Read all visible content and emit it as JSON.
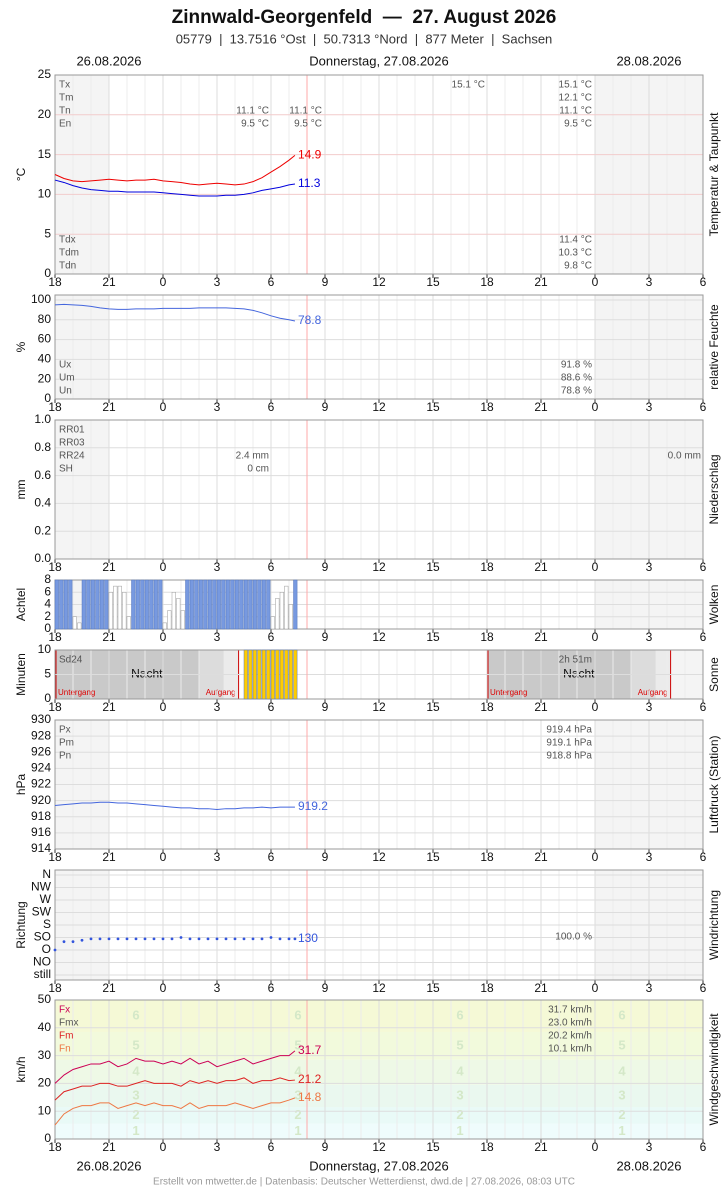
{
  "header": {
    "title": "Zinnwald-Georgenfeld  —  27. August 2026",
    "subtitle": "05779  |  13.7516 °Ost  |  50.7313 °Nord  |  877 Meter  |  Sachsen",
    "date_left": "26.08.2026",
    "date_center": "Donnerstag, 27.08.2026",
    "date_right": "28.08.2026",
    "footer": "Erstellt von mtwetter.de | Datenbasis: Deutscher Wetterdienst, dwd.de | 27.08.2026, 08:03 UTC"
  },
  "xlim": [
    0,
    36
  ],
  "xticks": [
    {
      "value": 0,
      "label": "18"
    },
    {
      "value": 3,
      "label": "21"
    },
    {
      "value": 6,
      "label": "0"
    },
    {
      "value": 9,
      "label": "3"
    },
    {
      "value": 12,
      "label": "6"
    },
    {
      "value": 15,
      "label": "9"
    },
    {
      "value": 18,
      "label": "12"
    },
    {
      "value": 21,
      "label": "15"
    },
    {
      "value": 24,
      "label": "18"
    },
    {
      "value": 27,
      "label": "21"
    },
    {
      "value": 30,
      "label": "0"
    },
    {
      "value": 33,
      "label": "3"
    },
    {
      "value": 36,
      "label": "6"
    }
  ],
  "now": 14,
  "chart_data": [
    {
      "type": "line",
      "ylabel": "°C",
      "side_label": "Temperatur & Taupunkt",
      "ylim": [
        0,
        25
      ],
      "yticks": [
        0,
        5,
        10,
        15,
        20,
        25
      ],
      "x": [
        0,
        0.5,
        1,
        1.5,
        2,
        2.5,
        3,
        3.5,
        4,
        4.5,
        5,
        5.5,
        6,
        6.5,
        7,
        7.5,
        8,
        8.5,
        9,
        9.5,
        10,
        10.5,
        11,
        11.5,
        12,
        12.5,
        13,
        13.33
      ],
      "series": [
        {
          "color": "#ee0000",
          "values": [
            12.5,
            12.0,
            11.7,
            11.6,
            11.7,
            11.8,
            11.9,
            11.8,
            11.7,
            11.8,
            11.8,
            11.9,
            11.7,
            11.6,
            11.5,
            11.3,
            11.2,
            11.3,
            11.4,
            11.3,
            11.2,
            11.3,
            11.6,
            12.1,
            12.8,
            13.5,
            14.3,
            14.9
          ]
        },
        {
          "color": "#0000dd",
          "values": [
            11.8,
            11.5,
            11.1,
            10.8,
            10.6,
            10.5,
            10.4,
            10.4,
            10.3,
            10.3,
            10.3,
            10.3,
            10.2,
            10.1,
            10.0,
            9.9,
            9.8,
            9.8,
            9.8,
            9.9,
            9.9,
            10.0,
            10.2,
            10.5,
            10.7,
            10.9,
            11.2,
            11.3
          ]
        }
      ],
      "stats": [
        {
          "labels": [
            "Tx",
            "Tm",
            "Tn",
            "En"
          ],
          "columns": [
            [
              null,
              null,
              "11.1 °C",
              "9.5 °C"
            ],
            [
              null,
              null,
              "11.1 °C",
              "9.5 °C"
            ],
            [
              "15.1 °C",
              null,
              null,
              null
            ],
            [
              "15.1 °C",
              "12.1 °C",
              "11.1 °C",
              "9.5 °C"
            ]
          ]
        },
        {
          "labels": [
            "Tdx",
            "Tdm",
            "Tdn"
          ],
          "columns": [
            [
              "11.4 °C",
              "10.3 °C",
              "9.8 °C"
            ]
          ]
        }
      ]
    },
    {
      "type": "line",
      "ylabel": "%",
      "side_label": "relative Feuchte",
      "ylim": [
        0,
        105
      ],
      "yticks": [
        0,
        20,
        40,
        60,
        80,
        100
      ],
      "x": [
        0,
        0.5,
        1,
        1.5,
        2,
        2.5,
        3,
        3.5,
        4,
        4.5,
        5,
        5.5,
        6,
        6.5,
        7,
        7.5,
        8,
        8.5,
        9,
        9.5,
        10,
        10.5,
        11,
        11.5,
        12,
        12.5,
        13,
        13.33
      ],
      "series": [
        {
          "color": "#4466dd",
          "values": [
            95,
            95.5,
            95,
            94.5,
            93.5,
            92,
            91,
            90.5,
            90.5,
            91,
            91,
            91,
            91.5,
            91.5,
            91.5,
            91.5,
            92,
            92,
            92,
            92,
            91.5,
            91,
            89.5,
            87,
            84,
            81.5,
            80,
            78.8
          ]
        }
      ],
      "stats": [
        {
          "labels": [
            "Ux",
            "Um",
            "Un"
          ],
          "columns": [
            [
              "91.8 %",
              "88.6 %",
              "78.8 %"
            ]
          ]
        }
      ]
    },
    {
      "type": "bar",
      "ylabel": "mm",
      "side_label": "Niederschlag",
      "ylim": [
        0,
        1
      ],
      "yticks": [
        {
          "value": 0,
          "label": "0.0"
        },
        0.2,
        0.4,
        0.6,
        0.8,
        {
          "value": 1,
          "label": "1.0"
        }
      ],
      "series": [],
      "stats": [
        {
          "labels": [
            "RR01",
            "RR03",
            "RR24",
            "SH"
          ],
          "columns": [
            [
              null,
              null,
              "2.4 mm",
              "0 cm"
            ],
            [
              null,
              null,
              "0.0 mm",
              null
            ]
          ]
        }
      ]
    },
    {
      "type": "bar",
      "ylabel": "Achtel",
      "side_label": "Wolken",
      "ylim": [
        0,
        8
      ],
      "yticks": [
        0,
        2,
        4,
        6,
        8
      ],
      "full_value": 8,
      "partial_color": "#ffffff",
      "x": [
        0,
        0.25,
        0.5,
        0.75,
        1,
        1.25,
        1.5,
        1.75,
        2,
        2.25,
        2.5,
        2.75,
        3,
        3.25,
        3.5,
        3.75,
        4,
        4.25,
        4.5,
        4.75,
        5,
        5.25,
        5.5,
        5.75,
        6,
        6.25,
        6.5,
        6.75,
        7,
        7.25,
        7.5,
        7.75,
        8,
        8.25,
        8.5,
        8.75,
        9,
        9.25,
        9.5,
        9.75,
        10,
        10.25,
        10.5,
        10.75,
        11,
        11.25,
        11.5,
        11.75,
        12,
        12.25,
        12.5,
        12.75,
        13,
        13.25
      ],
      "series": [
        {
          "color": "#7799e0",
          "values": [
            8,
            8,
            8,
            8,
            2,
            1,
            8,
            8,
            8,
            8,
            8,
            8,
            6,
            7,
            7,
            6,
            2,
            8,
            8,
            8,
            8,
            8,
            8,
            8,
            1,
            3,
            6,
            5,
            3,
            8,
            8,
            8,
            8,
            8,
            8,
            8,
            8,
            8,
            8,
            8,
            8,
            8,
            8,
            8,
            8,
            8,
            8,
            8,
            2,
            5,
            6,
            7,
            4,
            8
          ]
        }
      ]
    },
    {
      "type": "bar",
      "ylabel": "Minuten",
      "side_label": "Sonne",
      "ylim": [
        0,
        10
      ],
      "yticks": [
        0,
        5,
        10
      ],
      "nights": [
        {
          "x": [
            0,
            10.2
          ],
          "label": "Nacht",
          "start_label": "Untergang",
          "end_label": "Aufgang"
        },
        {
          "x": [
            24,
            34.2
          ],
          "label": "Nacht",
          "start_label": "Untergang",
          "end_label": "Aufgang"
        }
      ],
      "x": [
        10.5,
        10.75,
        11,
        11.25,
        11.5,
        11.75,
        12,
        12.25,
        12.5,
        12.75,
        13,
        13.25
      ],
      "series": [
        {
          "color": "#ffcc00",
          "values": [
            10,
            10,
            10,
            10,
            10,
            10,
            10,
            10,
            10,
            10,
            10,
            10
          ]
        }
      ],
      "stats": [
        {
          "labels": [
            "Sd24"
          ],
          "columns": [
            [
              "2h 51m"
            ]
          ]
        }
      ]
    },
    {
      "type": "line",
      "ylabel": "hPa",
      "side_label": "Luftdruck (Station)",
      "ylim": [
        914,
        930
      ],
      "yticks": [
        914,
        916,
        918,
        920,
        922,
        924,
        926,
        928,
        930
      ],
      "x": [
        0,
        0.5,
        1,
        1.5,
        2,
        2.5,
        3,
        3.5,
        4,
        4.5,
        5,
        5.5,
        6,
        6.5,
        7,
        7.5,
        8,
        8.5,
        9,
        9.5,
        10,
        10.5,
        11,
        11.5,
        12,
        12.5,
        13,
        13.33
      ],
      "series": [
        {
          "color": "#4466dd",
          "values": [
            919.4,
            919.5,
            919.6,
            919.7,
            919.7,
            919.8,
            919.8,
            919.7,
            919.7,
            919.6,
            919.5,
            919.4,
            919.3,
            919.2,
            919.1,
            919.1,
            919.0,
            919.0,
            918.9,
            919.0,
            919.0,
            919.1,
            919.1,
            919.2,
            919.1,
            919.2,
            919.2,
            919.2
          ]
        }
      ],
      "stats": [
        {
          "labels": [
            "Px",
            "Pm",
            "Pn"
          ],
          "columns": [
            [
              "919.4 hPa",
              "919.1 hPa",
              "918.8 hPa"
            ]
          ]
        }
      ]
    },
    {
      "type": "scatter",
      "ylabel": "Richtung",
      "side_label": "Windrichtung",
      "ylim": [
        -18,
        378
      ],
      "yticks": [
        {
          "value": 0,
          "label": "still"
        },
        {
          "value": 45,
          "label": "NO"
        },
        {
          "value": 90,
          "label": "O"
        },
        {
          "value": 135,
          "label": "SO"
        },
        {
          "value": 180,
          "label": "S"
        },
        {
          "value": 225,
          "label": "SW"
        },
        {
          "value": 270,
          "label": "W"
        },
        {
          "value": 315,
          "label": "NW"
        },
        {
          "value": 360,
          "label": "N"
        }
      ],
      "x": [
        0,
        0.5,
        1,
        1.5,
        2,
        2.5,
        3,
        3.5,
        4,
        4.5,
        5,
        5.5,
        6,
        6.5,
        7,
        7.5,
        8,
        8.5,
        9,
        9.5,
        10,
        10.5,
        11,
        11.5,
        12,
        12.5,
        13,
        13.33
      ],
      "series": [
        {
          "color": "#3355dd",
          "values": [
            90,
            120,
            120,
            125,
            130,
            130,
            130,
            130,
            130,
            130,
            130,
            130,
            130,
            130,
            135,
            130,
            130,
            130,
            130,
            130,
            130,
            130,
            130,
            130,
            135,
            130,
            130,
            130
          ]
        }
      ],
      "stats": [
        {
          "columns": [
            [
              "100.0 %"
            ]
          ]
        }
      ]
    },
    {
      "type": "line",
      "ylabel": "km/h",
      "side_label": "Windgeschwindigkeit",
      "ylim": [
        0,
        50
      ],
      "yticks": [
        0,
        10,
        20,
        30,
        40,
        50
      ],
      "bands": {
        "labels": [
          1,
          2,
          3,
          4,
          5,
          6
        ],
        "bounds": [
          0,
          5.5,
          11.5,
          19.5,
          28.5,
          38.5,
          50
        ],
        "colors": [
          "#effcfc",
          "#e9faf7",
          "#eaf8ef",
          "#eef9e6",
          "#f2fadc",
          "#f5f9d6"
        ]
      },
      "x": [
        0,
        0.5,
        1,
        1.5,
        2,
        2.5,
        3,
        3.5,
        4,
        4.5,
        5,
        5.5,
        6,
        6.5,
        7,
        7.5,
        8,
        8.5,
        9,
        9.5,
        10,
        10.5,
        11,
        11.5,
        12,
        12.5,
        13,
        13.33
      ],
      "series": [
        {
          "color": "#cc0055",
          "values": [
            20,
            23,
            25,
            26,
            27,
            27,
            28,
            26,
            27,
            29,
            28,
            28,
            27,
            28,
            27,
            29,
            27,
            28,
            26,
            27,
            28,
            29,
            27,
            28,
            29,
            30,
            30,
            31.7
          ]
        },
        {
          "color": "#dd2222",
          "values": [
            14,
            17,
            18,
            19,
            19,
            20,
            20,
            19,
            19,
            20,
            21,
            20,
            20,
            20,
            19,
            21,
            20,
            21,
            20,
            21,
            21,
            22,
            20,
            21,
            21,
            22,
            21,
            21.2
          ]
        },
        {
          "color": "#ee7744",
          "values": [
            5,
            9,
            11,
            12,
            12,
            13,
            13,
            11,
            12,
            13,
            12,
            13,
            12,
            12,
            11,
            13,
            11,
            12,
            12,
            12,
            13,
            12,
            11,
            12,
            13,
            13,
            14,
            14.8
          ]
        }
      ],
      "stats": [
        {
          "labels": [
            "Fx",
            "Fmx",
            "Fm",
            "Fn"
          ],
          "label_colors": [
            "#cc0055",
            "#555555",
            "#dd2222",
            "#ee7744"
          ],
          "columns": [
            [
              "31.7 km/h",
              "23.0 km/h",
              "20.2 km/h",
              "10.1 km/h"
            ]
          ]
        }
      ]
    }
  ]
}
